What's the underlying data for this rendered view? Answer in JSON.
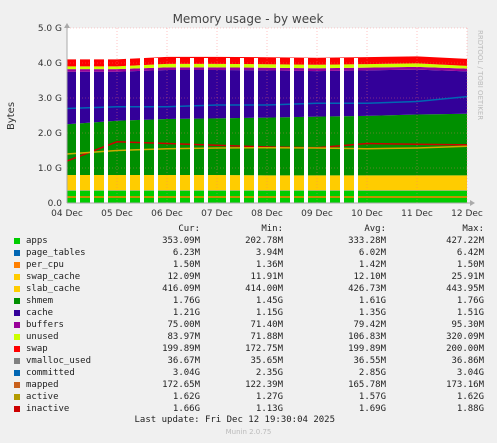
{
  "chart_data": {
    "type": "area",
    "title": "Memory usage - by week",
    "ylabel": "Bytes",
    "ylim": [
      0,
      5
    ],
    "y_unit": "G",
    "yticks": [
      "0.0",
      "1.0 G",
      "2.0 G",
      "3.0 G",
      "4.0 G",
      "5.0 G"
    ],
    "ytick_values": [
      0,
      1,
      2,
      3,
      4,
      5
    ],
    "categories": [
      "04 Dec",
      "05 Dec",
      "06 Dec",
      "07 Dec",
      "08 Dec",
      "09 Dec",
      "10 Dec",
      "11 Dec",
      "12 Dec"
    ],
    "stacked_series": [
      {
        "name": "apps",
        "color": "#00cc00",
        "values": [
          0.35,
          0.35,
          0.35,
          0.35,
          0.35,
          0.35,
          0.35,
          0.35,
          0.35
        ]
      },
      {
        "name": "page_tables",
        "color": "#0066b3",
        "values": [
          0.006,
          0.006,
          0.006,
          0.006,
          0.006,
          0.006,
          0.006,
          0.006,
          0.006
        ]
      },
      {
        "name": "per_cpu",
        "color": "#ff8000",
        "values": [
          0.0015,
          0.0015,
          0.0015,
          0.0015,
          0.0015,
          0.0015,
          0.0015,
          0.0015,
          0.0015
        ]
      },
      {
        "name": "swap_cache",
        "color": "#ffcc00",
        "values": [
          0.012,
          0.012,
          0.012,
          0.012,
          0.012,
          0.012,
          0.012,
          0.012,
          0.012
        ]
      },
      {
        "name": "slab_cache",
        "color": "#ffcc00",
        "values": [
          0.43,
          0.43,
          0.43,
          0.43,
          0.42,
          0.42,
          0.42,
          0.42,
          0.42
        ]
      },
      {
        "name": "shmem",
        "color": "#008f00",
        "values": [
          1.45,
          1.55,
          1.6,
          1.62,
          1.65,
          1.68,
          1.7,
          1.74,
          1.76
        ]
      },
      {
        "name": "cache",
        "color": "#330099",
        "values": [
          1.5,
          1.4,
          1.4,
          1.38,
          1.35,
          1.3,
          1.3,
          1.28,
          1.21
        ]
      },
      {
        "name": "buffers",
        "color": "#990099",
        "values": [
          0.075,
          0.075,
          0.075,
          0.075,
          0.075,
          0.08,
          0.08,
          0.08,
          0.08
        ]
      },
      {
        "name": "unused",
        "color": "#ccff00",
        "values": [
          0.08,
          0.08,
          0.1,
          0.1,
          0.1,
          0.1,
          0.1,
          0.1,
          0.08
        ]
      },
      {
        "name": "swap",
        "color": "#ff0000",
        "values": [
          0.2,
          0.2,
          0.2,
          0.2,
          0.2,
          0.2,
          0.2,
          0.2,
          0.2
        ]
      }
    ],
    "line_series": [
      {
        "name": "committed",
        "color": "#0066b3",
        "values": [
          2.7,
          2.75,
          2.75,
          2.8,
          2.8,
          2.85,
          2.85,
          2.9,
          3.04
        ]
      },
      {
        "name": "inactive",
        "color": "#cc0000",
        "values": [
          1.2,
          1.75,
          1.7,
          1.65,
          1.6,
          1.58,
          1.7,
          1.68,
          1.66
        ]
      },
      {
        "name": "active",
        "color": "#ccaa00",
        "values": [
          1.4,
          1.5,
          1.55,
          1.57,
          1.58,
          1.57,
          1.55,
          1.57,
          1.62
        ]
      },
      {
        "name": "mapped",
        "color": "#ff8000",
        "values": [
          0.17,
          0.17,
          0.17,
          0.17,
          0.17,
          0.17,
          0.17,
          0.17,
          0.17
        ]
      }
    ],
    "gaps_after_category": [
      0,
      1,
      2,
      3,
      4,
      5
    ],
    "grid": true,
    "legend_placement": "bottom"
  },
  "legend": {
    "headers": {
      "cur": "Cur:",
      "min": "Min:",
      "avg": "Avg:",
      "max": "Max:"
    },
    "rows": [
      {
        "name": "apps",
        "color": "#00cc00",
        "cur": "353.09M",
        "min": "202.78M",
        "avg": "333.28M",
        "max": "427.22M"
      },
      {
        "name": "page_tables",
        "color": "#0066b3",
        "cur": "6.23M",
        "min": "3.94M",
        "avg": "6.02M",
        "max": "6.42M"
      },
      {
        "name": "per_cpu",
        "color": "#ff8000",
        "cur": "1.50M",
        "min": "1.36M",
        "avg": "1.42M",
        "max": "1.50M"
      },
      {
        "name": "swap_cache",
        "color": "#ffcc00",
        "cur": "12.09M",
        "min": "11.91M",
        "avg": "12.10M",
        "max": "25.91M"
      },
      {
        "name": "slab_cache",
        "color": "#ffcc00",
        "cur": "416.09M",
        "min": "414.00M",
        "avg": "426.73M",
        "max": "443.95M"
      },
      {
        "name": "shmem",
        "color": "#008f00",
        "cur": "1.76G",
        "min": "1.45G",
        "avg": "1.61G",
        "max": "1.76G"
      },
      {
        "name": "cache",
        "color": "#330099",
        "cur": "1.21G",
        "min": "1.15G",
        "avg": "1.35G",
        "max": "1.51G"
      },
      {
        "name": "buffers",
        "color": "#990099",
        "cur": "75.00M",
        "min": "71.40M",
        "avg": "79.42M",
        "max": "95.30M"
      },
      {
        "name": "unused",
        "color": "#ccff00",
        "cur": "83.97M",
        "min": "71.88M",
        "avg": "106.83M",
        "max": "320.09M"
      },
      {
        "name": "swap",
        "color": "#ff0000",
        "cur": "199.89M",
        "min": "172.75M",
        "avg": "199.89M",
        "max": "200.00M"
      },
      {
        "name": "vmalloc_used",
        "color": "#808080",
        "cur": "36.67M",
        "min": "35.65M",
        "avg": "36.55M",
        "max": "36.86M"
      },
      {
        "name": "committed",
        "color": "#0066b3",
        "cur": "3.04G",
        "min": "2.35G",
        "avg": "2.85G",
        "max": "3.04G"
      },
      {
        "name": "mapped",
        "color": "#c8601c",
        "cur": "172.65M",
        "min": "122.39M",
        "avg": "165.78M",
        "max": "173.16M"
      },
      {
        "name": "active",
        "color": "#b39b00",
        "cur": "1.62G",
        "min": "1.27G",
        "avg": "1.57G",
        "max": "1.62G"
      },
      {
        "name": "inactive",
        "color": "#cc0000",
        "cur": "1.66G",
        "min": "1.13G",
        "avg": "1.69G",
        "max": "1.88G"
      }
    ]
  },
  "footer": {
    "last_update": "Last update: Fri Dec 12 19:30:04 2025",
    "version": "Munin 2.0.75",
    "rrd_label": "RRDTOOL / TOBI OETIKER"
  }
}
